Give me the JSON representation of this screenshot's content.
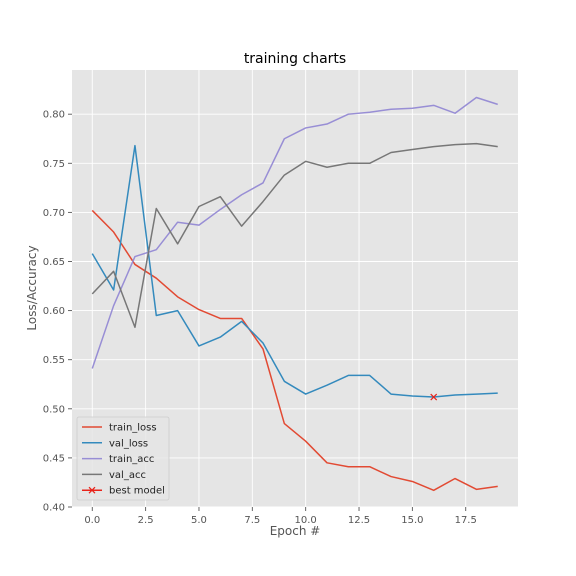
{
  "chart_data": {
    "type": "line",
    "title": "training charts",
    "xlabel": "Epoch #",
    "ylabel": "Loss/Accuracy",
    "xlim": [
      -0.95,
      19.95
    ],
    "ylim": [
      0.4,
      0.845
    ],
    "xticks": [
      0.0,
      2.5,
      5.0,
      7.5,
      10.0,
      12.5,
      15.0,
      17.5
    ],
    "xtick_labels": [
      "0.0",
      "2.5",
      "5.0",
      "7.5",
      "10.0",
      "12.5",
      "15.0",
      "17.5"
    ],
    "yticks": [
      0.4,
      0.45,
      0.5,
      0.55,
      0.6,
      0.65,
      0.7,
      0.75,
      0.8
    ],
    "ytick_labels": [
      "0.40",
      "0.45",
      "0.50",
      "0.55",
      "0.60",
      "0.65",
      "0.70",
      "0.75",
      "0.80"
    ],
    "grid": true,
    "legend_position": "lower-left",
    "x": [
      0,
      1,
      2,
      3,
      4,
      5,
      6,
      7,
      8,
      9,
      10,
      11,
      12,
      13,
      14,
      15,
      16,
      17,
      18,
      19
    ],
    "series": [
      {
        "name": "train_loss",
        "color": "#E24A33",
        "values": [
          0.702,
          0.68,
          0.647,
          0.633,
          0.614,
          0.601,
          0.592,
          0.592,
          0.561,
          0.485,
          0.467,
          0.445,
          0.441,
          0.441,
          0.431,
          0.426,
          0.417,
          0.429,
          0.418,
          0.421
        ]
      },
      {
        "name": "val_loss",
        "color": "#348ABD",
        "values": [
          0.658,
          0.621,
          0.768,
          0.595,
          0.6,
          0.564,
          0.573,
          0.589,
          0.567,
          0.528,
          0.515,
          0.524,
          0.534,
          0.534,
          0.515,
          0.513,
          0.512,
          0.514,
          0.515,
          0.516
        ]
      },
      {
        "name": "train_acc",
        "color": "#988ED5",
        "values": [
          0.541,
          0.605,
          0.655,
          0.662,
          0.69,
          0.687,
          0.703,
          0.718,
          0.73,
          0.775,
          0.786,
          0.79,
          0.8,
          0.802,
          0.805,
          0.806,
          0.809,
          0.801,
          0.817,
          0.81
        ]
      },
      {
        "name": "val_acc",
        "color": "#777777",
        "values": [
          0.617,
          0.64,
          0.583,
          0.704,
          0.668,
          0.706,
          0.716,
          0.686,
          0.711,
          0.738,
          0.752,
          0.746,
          0.75,
          0.75,
          0.761,
          0.764,
          0.767,
          0.769,
          0.77,
          0.767
        ]
      }
    ],
    "best_model": {
      "name": "best model",
      "color": "#E8231A",
      "x": 16,
      "y": 0.512
    }
  }
}
